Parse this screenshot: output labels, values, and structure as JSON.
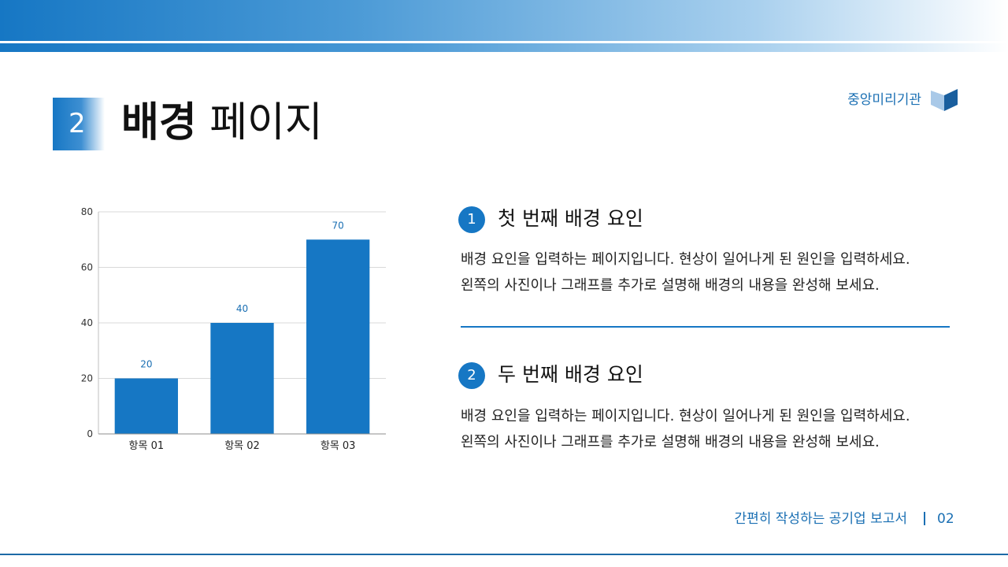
{
  "header": {
    "section_number": "2",
    "title_bold": "배경",
    "title_rest": "페이지",
    "org_name": "중앙미리기관"
  },
  "items": [
    {
      "number": "1",
      "title": "첫 번째 배경 요인",
      "lines": [
        "배경 요인을 입력하는 페이지입니다. 현상이 일어나게 된 원인을 입력하세요.",
        "왼쪽의 사진이나 그래프를 추가로 설명해 배경의 내용을 완성해 보세요."
      ]
    },
    {
      "number": "2",
      "title": "두 번째 배경 요인",
      "lines": [
        "배경 요인을 입력하는 페이지입니다. 현상이 일어나게 된 원인을 입력하세요.",
        "왼쪽의 사진이나 그래프를 추가로 설명해 배경의 내용을 완성해 보세요."
      ]
    }
  ],
  "footer": {
    "doc_title": "간편히 작성하는 공기업 보고서",
    "page_number": "02"
  },
  "colors": {
    "accent": "#1677c4",
    "label": "#1a6fb3",
    "grid": "#d9d9d9"
  },
  "chart_data": {
    "type": "bar",
    "categories": [
      "항목 01",
      "항목 02",
      "항목 03"
    ],
    "values": [
      20,
      40,
      70
    ],
    "data_labels": [
      "20",
      "40",
      "70"
    ],
    "ylim": [
      0,
      80
    ],
    "yticks": [
      0,
      20,
      40,
      60,
      80
    ],
    "grid": true,
    "title": "",
    "xlabel": "",
    "ylabel": ""
  }
}
